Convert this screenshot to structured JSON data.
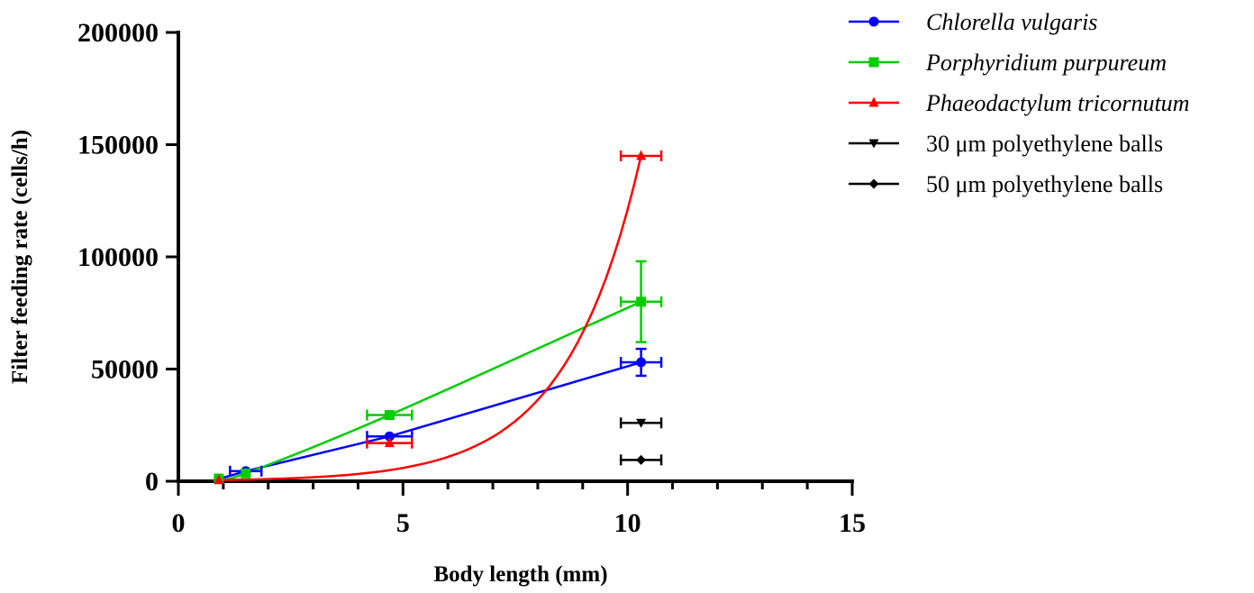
{
  "chart_data": {
    "type": "scatter",
    "xlabel": "Body length (mm)",
    "ylabel": "Filter feeding rate (cells/h)",
    "xlim": [
      0,
      15
    ],
    "ylim": [
      0,
      200000
    ],
    "x_ticks": [
      "0",
      "5",
      "10",
      "15"
    ],
    "y_ticks": [
      "0",
      "50000",
      "100000",
      "150000",
      "200000"
    ],
    "grid": false,
    "legend_position": "top-right",
    "series": [
      {
        "name": "Chlorella vulgaris",
        "italic": true,
        "color": "#0000ff",
        "marker": "circle",
        "fit": "linear-segments",
        "points": [
          {
            "x": 0.9,
            "y": 1000,
            "xerr": 0,
            "yerr": 0
          },
          {
            "x": 1.5,
            "y": 4500,
            "xerr": 0.35,
            "yerr": 0
          },
          {
            "x": 4.7,
            "y": 20000,
            "xerr": 0.5,
            "yerr": 0
          },
          {
            "x": 10.3,
            "y": 53000,
            "xerr": 0.45,
            "yerr": 6000
          }
        ]
      },
      {
        "name": "Porphyridium purpureum",
        "italic": true,
        "color": "#00cc00",
        "marker": "square",
        "fit": "smooth",
        "points": [
          {
            "x": 0.9,
            "y": 1200,
            "xerr": 0,
            "yerr": 0
          },
          {
            "x": 1.5,
            "y": 3500,
            "xerr": 0,
            "yerr": 0
          },
          {
            "x": 4.7,
            "y": 29500,
            "xerr": 0.5,
            "yerr": 0
          },
          {
            "x": 10.3,
            "y": 80000,
            "xerr": 0.45,
            "yerr": 18000
          }
        ]
      },
      {
        "name": "Phaeodactylum tricornutum",
        "italic": true,
        "color": "#ff0000",
        "marker": "triangle-up",
        "fit": "exponential",
        "points": [
          {
            "x": 0.9,
            "y": 500,
            "xerr": 0,
            "yerr": 0
          },
          {
            "x": 4.7,
            "y": 17000,
            "xerr": 0.5,
            "yerr": 0
          },
          {
            "x": 10.3,
            "y": 145000,
            "xerr": 0.45,
            "yerr": 0
          }
        ]
      },
      {
        "name": "30 μm polyethylene balls",
        "italic": false,
        "color": "#000000",
        "marker": "triangle-down",
        "fit": "none",
        "points": [
          {
            "x": 10.3,
            "y": 26000,
            "xerr": 0.45,
            "yerr": 0
          }
        ]
      },
      {
        "name": "50 μm polyethylene balls",
        "italic": false,
        "color": "#000000",
        "marker": "diamond",
        "fit": "none",
        "points": [
          {
            "x": 10.3,
            "y": 9500,
            "xerr": 0.45,
            "yerr": 0
          }
        ]
      }
    ]
  }
}
